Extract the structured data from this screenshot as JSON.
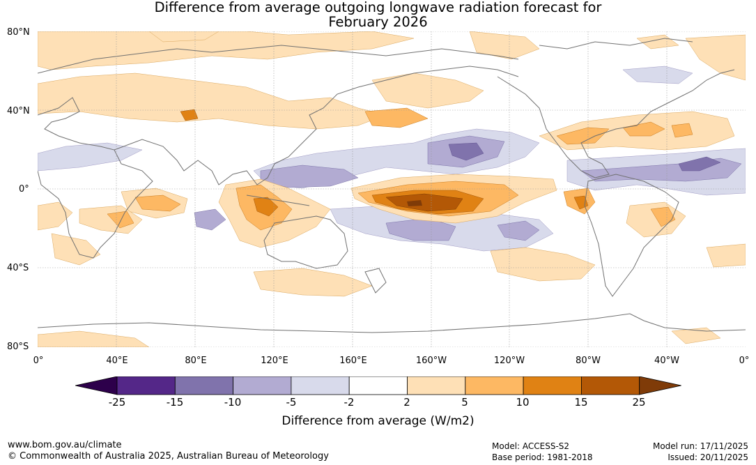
{
  "title": {
    "line1": "Difference from average outgoing longwave radiation forecast for",
    "line2": "February 2026"
  },
  "axes": {
    "lat_labels": [
      "80°N",
      "40°N",
      "0°",
      "40°S",
      "80°S"
    ],
    "lon_labels": [
      "0°",
      "40°E",
      "80°E",
      "120°E",
      "160°E",
      "160°W",
      "120°W",
      "80°W",
      "40°W",
      "0°"
    ]
  },
  "legend": {
    "ticks": [
      "-25",
      "-15",
      "-10",
      "-5",
      "-2",
      "2",
      "5",
      "10",
      "15",
      "25"
    ],
    "colors": [
      "#2d004b",
      "#542788",
      "#8073ac",
      "#b2abd2",
      "#d8daeb",
      "#ffffff",
      "#fee0b6",
      "#fdb863",
      "#e08214",
      "#b35806",
      "#7f3b08"
    ],
    "caption": "Difference from average (W/m2)"
  },
  "footer": {
    "website": "www.bom.gov.au/climate",
    "copyright": "© Commonwealth of Australia 2025, Australian Bureau of Meteorology",
    "model": "Model: ACCESS-S2",
    "base_period": "Base period: 1981-2018",
    "model_run": "Model run: 17/11/2025",
    "issued": "Issued: 20/11/2025"
  }
}
